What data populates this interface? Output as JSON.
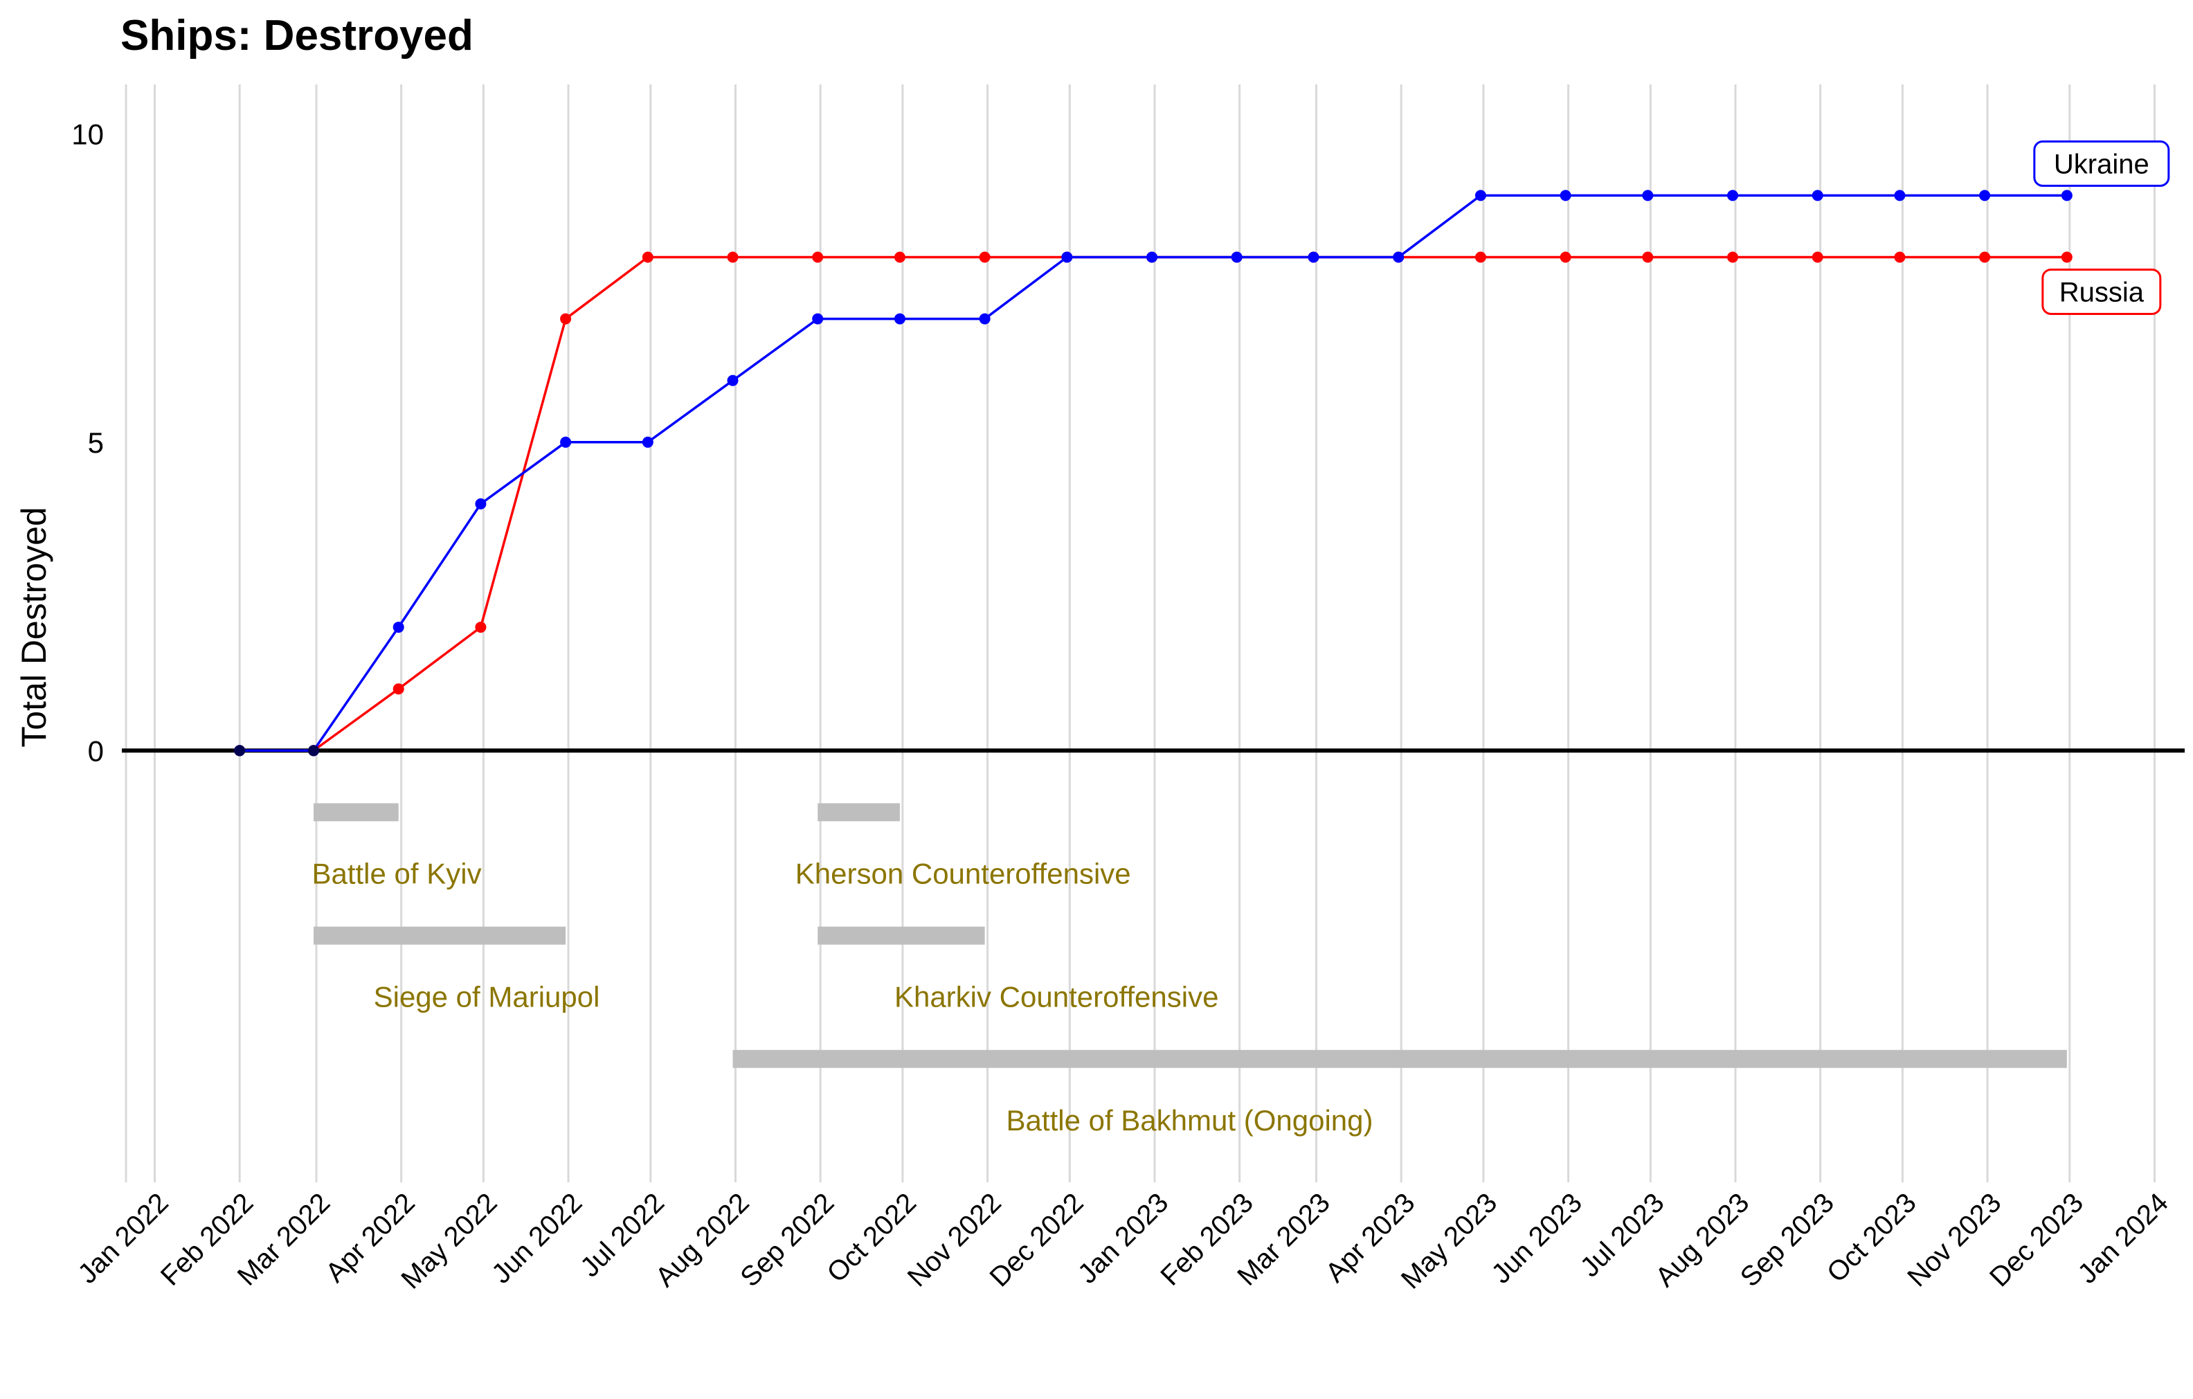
{
  "chart_data": {
    "type": "line",
    "title": "Ships: Destroyed",
    "ylabel": "Total Destroyed",
    "xlabel": "",
    "ylim": [
      -7,
      10.8
    ],
    "xlim": [
      "2021-12-20",
      "2024-01-12"
    ],
    "yticks": [
      0,
      5,
      10
    ],
    "xtick_labels": [
      "Jan 2022",
      "Feb 2022",
      "Mar 2022",
      "Apr 2022",
      "May 2022",
      "Jun 2022",
      "Jul 2022",
      "Aug 2022",
      "Sep 2022",
      "Oct 2022",
      "Nov 2022",
      "Dec 2022",
      "Jan 2023",
      "Feb 2023",
      "Mar 2023",
      "Apr 2023",
      "May 2023",
      "Jun 2023",
      "Jul 2023",
      "Aug 2023",
      "Sep 2023",
      "Oct 2023",
      "Nov 2023",
      "Dec 2023",
      "Jan 2024"
    ],
    "xtick_dates": [
      "2022-01-01",
      "2022-02-01",
      "2022-03-01",
      "2022-04-01",
      "2022-05-01",
      "2022-06-01",
      "2022-07-01",
      "2022-08-01",
      "2022-09-01",
      "2022-10-01",
      "2022-11-01",
      "2022-12-01",
      "2023-01-01",
      "2023-02-01",
      "2023-03-01",
      "2023-04-01",
      "2023-05-01",
      "2023-06-01",
      "2023-07-01",
      "2023-08-01",
      "2023-09-01",
      "2023-10-01",
      "2023-11-01",
      "2023-12-01",
      "2024-01-01"
    ],
    "grid": "vertical",
    "x": [
      "2022-02-01",
      "2022-02-28",
      "2022-03-31",
      "2022-04-30",
      "2022-05-31",
      "2022-06-30",
      "2022-07-31",
      "2022-08-31",
      "2022-09-30",
      "2022-10-31",
      "2022-11-30",
      "2022-12-31",
      "2023-01-31",
      "2023-02-28",
      "2023-03-31",
      "2023-04-30",
      "2023-05-31",
      "2023-06-30",
      "2023-07-31",
      "2023-08-31",
      "2023-09-30",
      "2023-10-31",
      "2023-11-30"
    ],
    "series": [
      {
        "name": "Ukraine",
        "color": "#0000FF",
        "values": [
          0,
          0,
          2,
          4,
          5,
          5,
          6,
          7,
          7,
          7,
          8,
          8,
          8,
          8,
          8,
          9,
          9,
          9,
          9,
          9,
          9,
          9,
          9
        ]
      },
      {
        "name": "Russia",
        "color": "#FF0000",
        "values": [
          0,
          0,
          1,
          2,
          7,
          8,
          8,
          8,
          8,
          8,
          8,
          8,
          8,
          8,
          8,
          8,
          8,
          8,
          8,
          8,
          8,
          8,
          8
        ]
      }
    ],
    "events": [
      {
        "label": "Battle of Kyiv",
        "start": "2022-02-28",
        "end": "2022-03-31",
        "bar_y": -1,
        "label_y": -2
      },
      {
        "label": "Kherson Counteroffensive",
        "start": "2022-08-31",
        "end": "2022-09-30",
        "bar_y": -1,
        "label_y": -2
      },
      {
        "label": "Siege of Mariupol",
        "start": "2022-02-28",
        "end": "2022-05-31",
        "bar_y": -3,
        "label_y": -4
      },
      {
        "label": "Kharkiv Counteroffensive",
        "start": "2022-08-31",
        "end": "2022-10-31",
        "bar_y": -3,
        "label_y": -4
      },
      {
        "label": "Battle of Bakhmut (Ongoing)",
        "start": "2022-07-31",
        "end": "2023-11-30",
        "bar_y": -5,
        "label_y": -6
      }
    ],
    "event_colors": {
      "bar": "#BEBEBE",
      "label": "#8B7500"
    },
    "legend": "direct labels at right end of lines"
  }
}
